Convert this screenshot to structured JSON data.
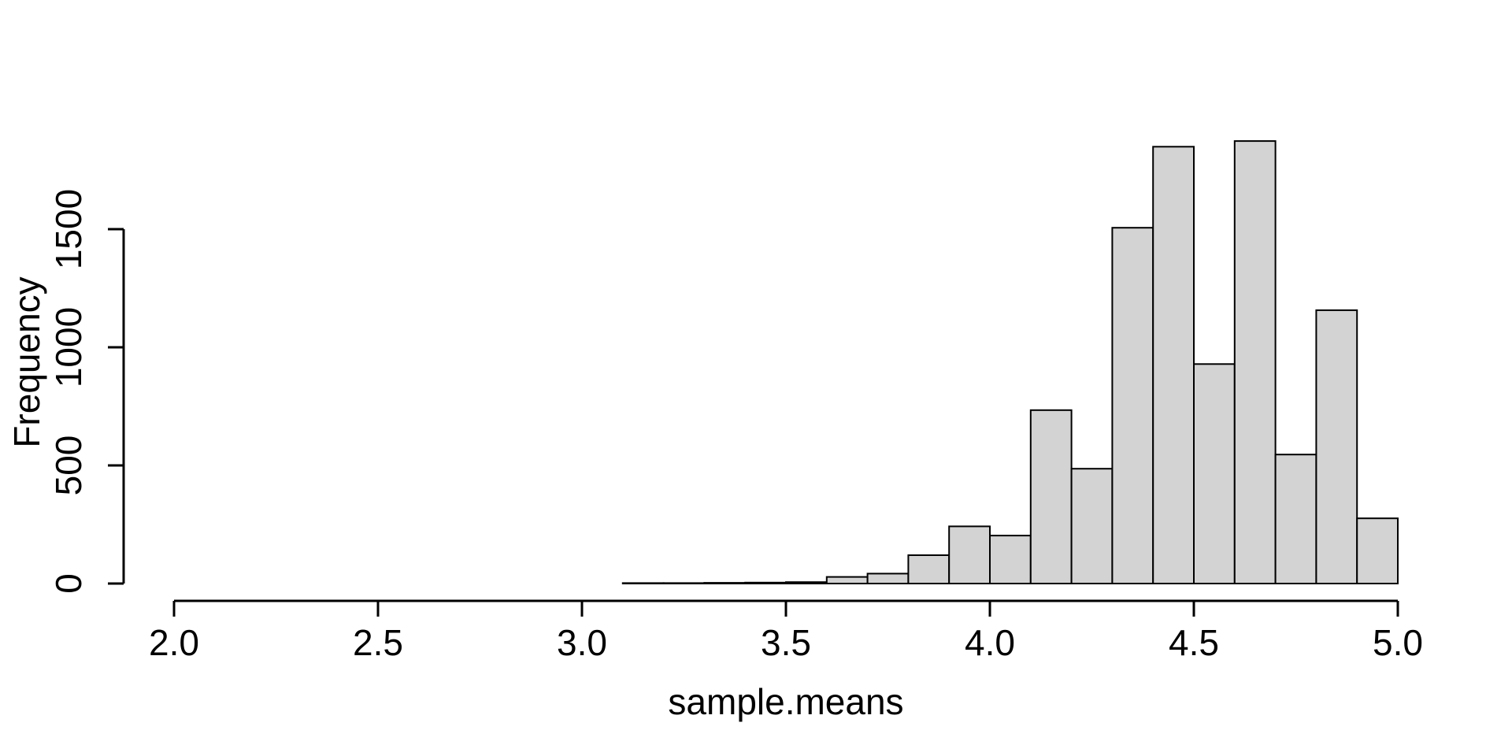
{
  "chart_data": {
    "type": "bar",
    "subtype": "histogram",
    "title": "",
    "xlabel": "sample.means",
    "ylabel": "Frequency",
    "xlim": [
      2.0,
      5.0
    ],
    "ylim": [
      0,
      1880
    ],
    "grid": false,
    "legend": false,
    "background": "#ffffff",
    "bar_fill": "#d3d3d3",
    "bar_stroke": "#000000",
    "axis_color": "#000000",
    "x_ticks": [
      {
        "value": 2.0,
        "label": "2.0"
      },
      {
        "value": 2.5,
        "label": "2.5"
      },
      {
        "value": 3.0,
        "label": "3.0"
      },
      {
        "value": 3.5,
        "label": "3.5"
      },
      {
        "value": 4.0,
        "label": "4.0"
      },
      {
        "value": 4.5,
        "label": "4.5"
      },
      {
        "value": 5.0,
        "label": "5.0"
      }
    ],
    "y_ticks": [
      {
        "value": 0,
        "label": "0"
      },
      {
        "value": 500,
        "label": "500"
      },
      {
        "value": 1000,
        "label": "1000"
      },
      {
        "value": 1500,
        "label": "1500"
      }
    ],
    "bin_width": 0.1,
    "bins": [
      {
        "from": 3.1,
        "to": 3.2,
        "count": 2
      },
      {
        "from": 3.2,
        "to": 3.3,
        "count": 2
      },
      {
        "from": 3.3,
        "to": 3.4,
        "count": 3
      },
      {
        "from": 3.4,
        "to": 3.5,
        "count": 4
      },
      {
        "from": 3.5,
        "to": 3.6,
        "count": 6
      },
      {
        "from": 3.6,
        "to": 3.7,
        "count": 28
      },
      {
        "from": 3.7,
        "to": 3.8,
        "count": 42
      },
      {
        "from": 3.8,
        "to": 3.9,
        "count": 120
      },
      {
        "from": 3.9,
        "to": 4.0,
        "count": 242
      },
      {
        "from": 4.0,
        "to": 4.1,
        "count": 203
      },
      {
        "from": 4.1,
        "to": 4.2,
        "count": 734
      },
      {
        "from": 4.2,
        "to": 4.3,
        "count": 486
      },
      {
        "from": 4.3,
        "to": 4.4,
        "count": 1506
      },
      {
        "from": 4.4,
        "to": 4.5,
        "count": 1849
      },
      {
        "from": 4.5,
        "to": 4.6,
        "count": 929
      },
      {
        "from": 4.6,
        "to": 4.7,
        "count": 1873
      },
      {
        "from": 4.7,
        "to": 4.8,
        "count": 546
      },
      {
        "from": 4.8,
        "to": 4.9,
        "count": 1157
      },
      {
        "from": 4.9,
        "to": 5.0,
        "count": 276
      }
    ]
  }
}
